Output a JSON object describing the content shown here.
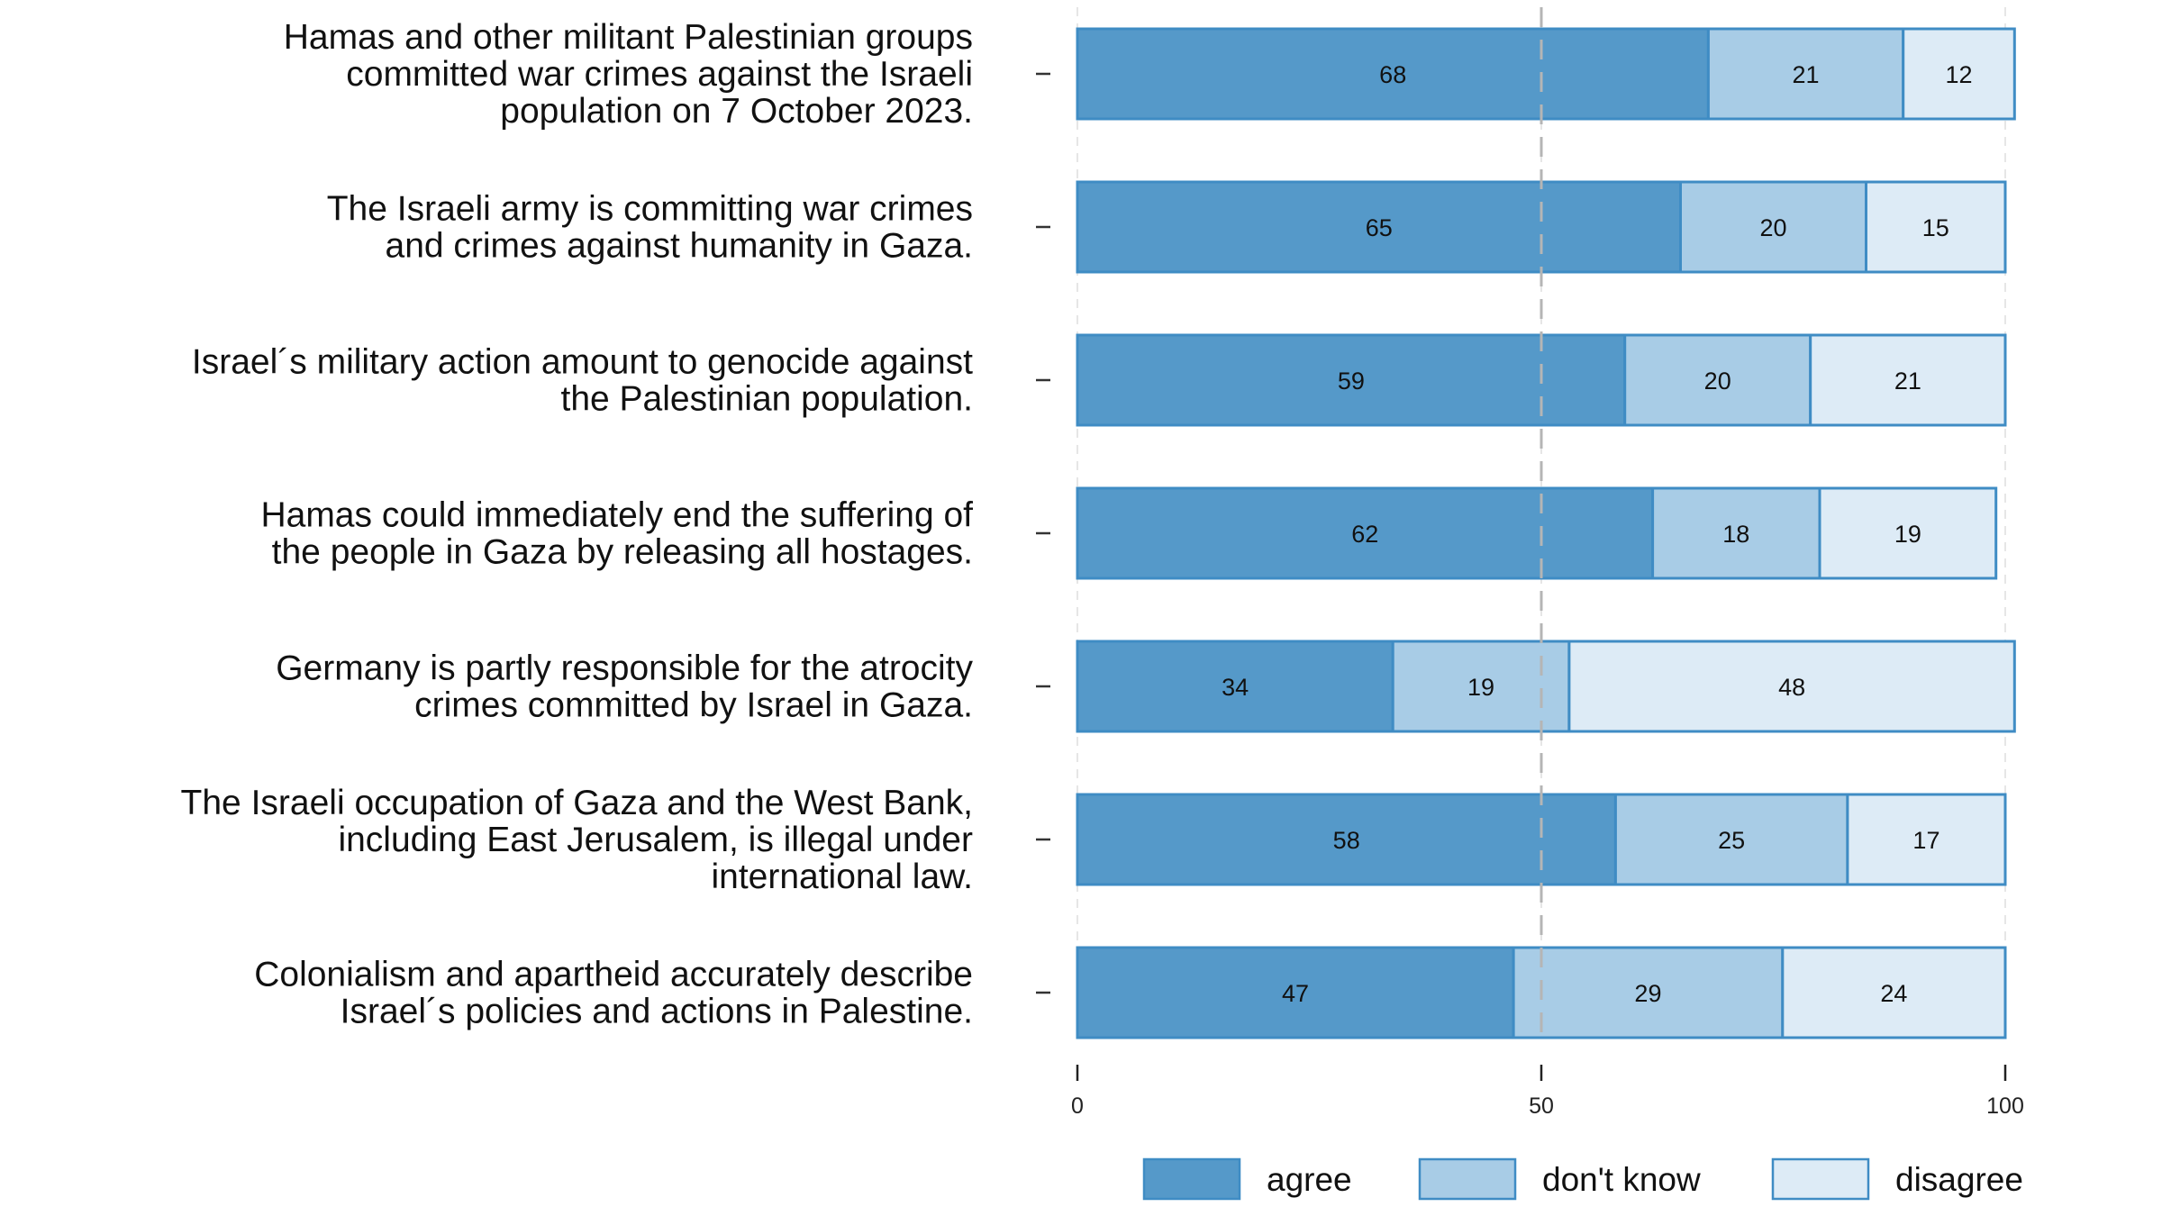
{
  "chart_data": {
    "type": "bar",
    "orientation": "horizontal",
    "stacked": true,
    "title": "",
    "xlabel": "",
    "ylabel": "",
    "xlim": [
      0,
      100
    ],
    "xticks": [
      0,
      50,
      100
    ],
    "reference_line": 50,
    "categories": [
      [
        "Hamas and other militant Palestinian groups",
        "committed war crimes against the Israeli",
        "population on 7 October 2023."
      ],
      [
        "The Israeli army is committing war crimes",
        "and crimes against humanity in Gaza."
      ],
      [
        "Israel´s military action amount to genocide against",
        "the Palestinian population."
      ],
      [
        "Hamas could immediately end the suffering of",
        "the people in Gaza by releasing all hostages."
      ],
      [
        "Germany is partly responsible for the atrocity",
        "crimes committed by Israel in Gaza."
      ],
      [
        "The Israeli occupation of Gaza and the West Bank,",
        "including East Jerusalem, is illegal under",
        "international law."
      ],
      [
        "Colonialism and apartheid accurately describe",
        "Israel´s policies and actions in Palestine."
      ]
    ],
    "series": [
      {
        "name": "agree",
        "color": "#5599c9",
        "values": [
          68,
          65,
          59,
          62,
          34,
          58,
          47
        ]
      },
      {
        "name": "don't know",
        "color": "#a8cce6",
        "values": [
          21,
          20,
          20,
          18,
          19,
          25,
          29
        ]
      },
      {
        "name": "disagree",
        "color": "#ddebf6",
        "values": [
          12,
          15,
          21,
          19,
          48,
          17,
          24
        ]
      }
    ],
    "edge_color": "#3f8cc4",
    "legend_position": "bottom"
  }
}
